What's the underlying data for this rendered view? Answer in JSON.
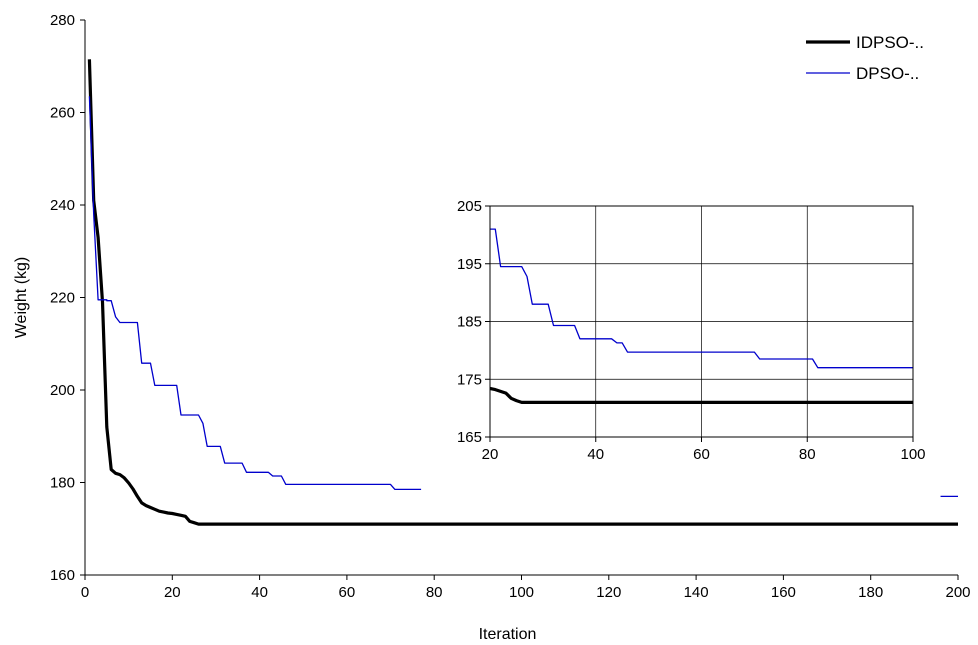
{
  "chart_data": [
    {
      "type": "line",
      "title": "",
      "xlabel": "Iteration",
      "ylabel": "Weight (kg)",
      "xlim": [
        0,
        200
      ],
      "ylim": [
        160,
        280
      ],
      "xticks": [
        0,
        20,
        40,
        60,
        80,
        100,
        120,
        140,
        160,
        180,
        200
      ],
      "yticks": [
        160,
        180,
        200,
        220,
        240,
        260,
        280
      ],
      "grid": false,
      "legend_position": "top-right",
      "series": [
        {
          "name": "IDPSO-..",
          "color": "#000000",
          "style": "thick",
          "points": [
            [
              1,
              271.5
            ],
            [
              2,
              241
            ],
            [
              3,
              233
            ],
            [
              4,
              219
            ],
            [
              5,
              192
            ],
            [
              6,
              182.8
            ],
            [
              7,
              182
            ],
            [
              8,
              181.7
            ],
            [
              9,
              181
            ],
            [
              10,
              179.9
            ],
            [
              11,
              178.6
            ],
            [
              12,
              177
            ],
            [
              13,
              175.6
            ],
            [
              14,
              175
            ],
            [
              15,
              174.6
            ],
            [
              16,
              174.2
            ],
            [
              17,
              173.8
            ],
            [
              18,
              173.6
            ],
            [
              19,
              173.4
            ],
            [
              20,
              173.3
            ],
            [
              21,
              173.1
            ],
            [
              22,
              172.9
            ],
            [
              23,
              172.7
            ],
            [
              24,
              171.6
            ],
            [
              25,
              171.3
            ],
            [
              26,
              171
            ],
            [
              30,
              171
            ],
            [
              100,
              171
            ],
            [
              150,
              171
            ],
            [
              200,
              171
            ]
          ]
        },
        {
          "name": "DPSO-..",
          "color": "#0000cc",
          "style": "thin",
          "points": [
            [
              1,
              263.5
            ],
            [
              2,
              238
            ],
            [
              3,
              219.5
            ],
            [
              5,
              219.5
            ],
            [
              5,
              219.3
            ],
            [
              6,
              219.3
            ],
            [
              7,
              215.8
            ],
            [
              8,
              214.6
            ],
            [
              12,
              214.6
            ],
            [
              13,
              205.8
            ],
            [
              15,
              205.8
            ],
            [
              16,
              201
            ],
            [
              21,
              201
            ],
            [
              22,
              194.6
            ],
            [
              26,
              194.6
            ],
            [
              27,
              192.8
            ],
            [
              28,
              187.8
            ],
            [
              31,
              187.8
            ],
            [
              32,
              184.2
            ],
            [
              36,
              184.2
            ],
            [
              37,
              182.2
            ],
            [
              42,
              182.2
            ],
            [
              43,
              181.4
            ],
            [
              45,
              181.4
            ],
            [
              46,
              179.6
            ],
            [
              70,
              179.6
            ],
            [
              71,
              178.5
            ],
            [
              77,
              178.5
            ]
          ]
        }
      ]
    },
    {
      "type": "line",
      "title": "",
      "xlabel": "",
      "ylabel": "",
      "xlim": [
        20,
        100
      ],
      "ylim": [
        165,
        205
      ],
      "xticks": [
        20,
        40,
        60,
        80,
        100
      ],
      "yticks": [
        165,
        175,
        185,
        195,
        205
      ],
      "grid": true,
      "series": [
        {
          "color": "#000000",
          "style": "thick",
          "points": [
            [
              20,
              173.4
            ],
            [
              21,
              173.2
            ],
            [
              22,
              172.9
            ],
            [
              23,
              172.6
            ],
            [
              24,
              171.7
            ],
            [
              25,
              171.3
            ],
            [
              26,
              171
            ],
            [
              100,
              171
            ]
          ]
        },
        {
          "color": "#0000cc",
          "style": "thin",
          "points": [
            [
              20,
              201
            ],
            [
              21,
              201
            ],
            [
              22,
              194.5
            ],
            [
              26,
              194.5
            ],
            [
              27,
              192.8
            ],
            [
              28,
              188
            ],
            [
              31,
              188
            ],
            [
              32,
              184.3
            ],
            [
              36,
              184.3
            ],
            [
              37,
              182
            ],
            [
              43,
              182
            ],
            [
              44,
              181.3
            ],
            [
              45,
              181.3
            ],
            [
              46,
              179.7
            ],
            [
              70,
              179.7
            ],
            [
              71,
              178.5
            ],
            [
              81,
              178.5
            ],
            [
              82,
              177
            ],
            [
              100,
              177
            ]
          ]
        }
      ]
    }
  ]
}
